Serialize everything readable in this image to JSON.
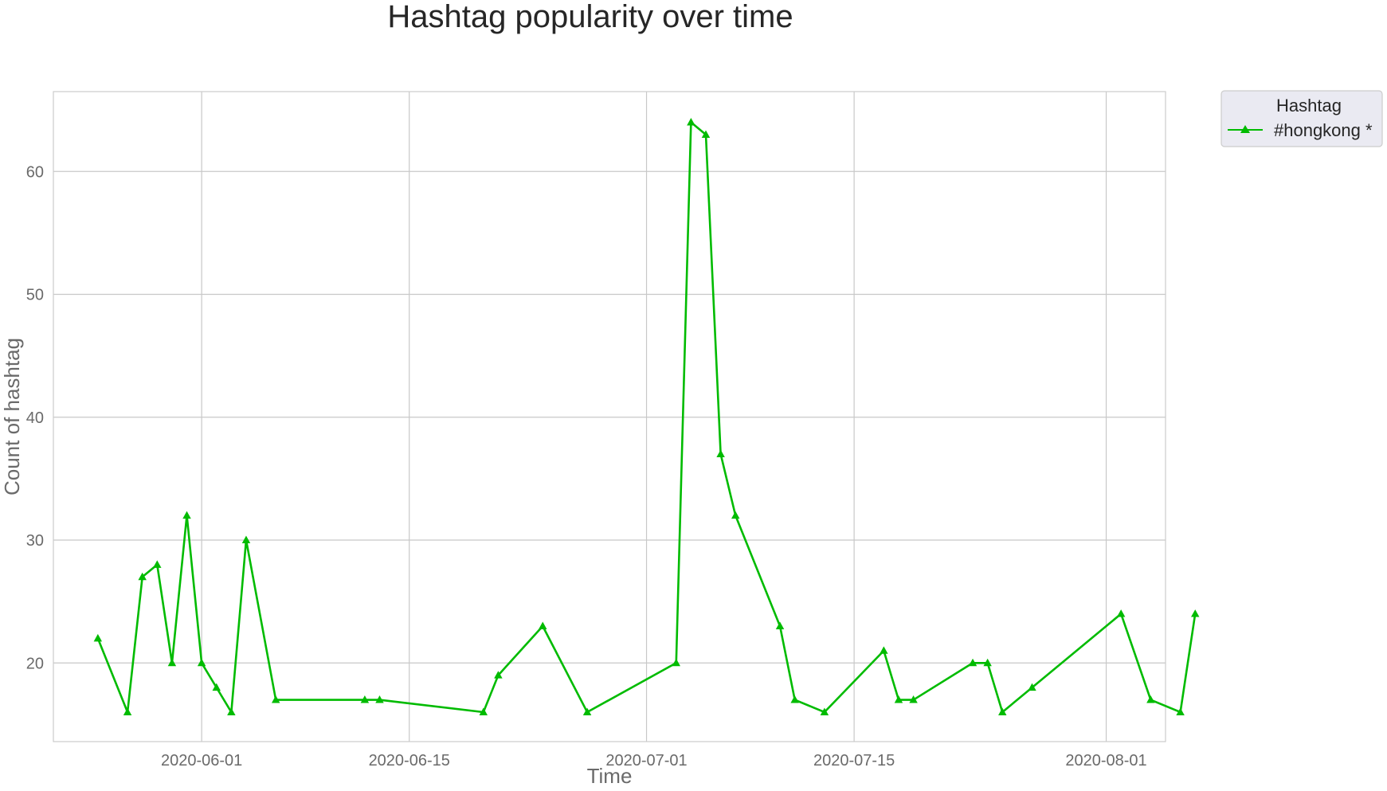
{
  "colors": {
    "series": "#00bb00",
    "grid": "#c8c8c8",
    "frame": "#cccccc",
    "legend_bg": "#eaeaf2",
    "text_dark": "#262626",
    "text_muted": "#6a6a6a"
  },
  "chart_data": {
    "type": "line",
    "title": "Hashtag popularity over time",
    "xlabel": "Time",
    "ylabel": "Count of hashtag",
    "xlim": [
      "2020-05-22",
      "2020-08-05"
    ],
    "ylim": [
      13.6,
      66.5
    ],
    "x_ticks": [
      "2020-06-01",
      "2020-06-15",
      "2020-07-01",
      "2020-07-15",
      "2020-08-01"
    ],
    "y_ticks": [
      20,
      30,
      40,
      50,
      60
    ],
    "grid": true,
    "marker": "triangle",
    "legend": {
      "title": "Hashtag",
      "placement": "outside-top-right"
    },
    "series": [
      {
        "name": "#hongkong *",
        "color": "#00bb00",
        "points": [
          {
            "x": "2020-05-25",
            "y": 22
          },
          {
            "x": "2020-05-27",
            "y": 16
          },
          {
            "x": "2020-05-28",
            "y": 27
          },
          {
            "x": "2020-05-29",
            "y": 28
          },
          {
            "x": "2020-05-30",
            "y": 20
          },
          {
            "x": "2020-05-31",
            "y": 32
          },
          {
            "x": "2020-06-01",
            "y": 20
          },
          {
            "x": "2020-06-02",
            "y": 18
          },
          {
            "x": "2020-06-03",
            "y": 16
          },
          {
            "x": "2020-06-04",
            "y": 30
          },
          {
            "x": "2020-06-06",
            "y": 17
          },
          {
            "x": "2020-06-12",
            "y": 17
          },
          {
            "x": "2020-06-13",
            "y": 17
          },
          {
            "x": "2020-06-20",
            "y": 16
          },
          {
            "x": "2020-06-21",
            "y": 19
          },
          {
            "x": "2020-06-24",
            "y": 23
          },
          {
            "x": "2020-06-27",
            "y": 16
          },
          {
            "x": "2020-07-03",
            "y": 20
          },
          {
            "x": "2020-07-04",
            "y": 64
          },
          {
            "x": "2020-07-05",
            "y": 63
          },
          {
            "x": "2020-07-06",
            "y": 37
          },
          {
            "x": "2020-07-07",
            "y": 32
          },
          {
            "x": "2020-07-10",
            "y": 23
          },
          {
            "x": "2020-07-11",
            "y": 17
          },
          {
            "x": "2020-07-13",
            "y": 16
          },
          {
            "x": "2020-07-17",
            "y": 21
          },
          {
            "x": "2020-07-18",
            "y": 17
          },
          {
            "x": "2020-07-19",
            "y": 17
          },
          {
            "x": "2020-07-23",
            "y": 20
          },
          {
            "x": "2020-07-24",
            "y": 20
          },
          {
            "x": "2020-07-25",
            "y": 16
          },
          {
            "x": "2020-07-27",
            "y": 18
          },
          {
            "x": "2020-08-02",
            "y": 24
          },
          {
            "x": "2020-08-04",
            "y": 17
          },
          {
            "x": "2020-08-06",
            "y": 16
          },
          {
            "x": "2020-08-07",
            "y": 24
          }
        ]
      }
    ]
  }
}
